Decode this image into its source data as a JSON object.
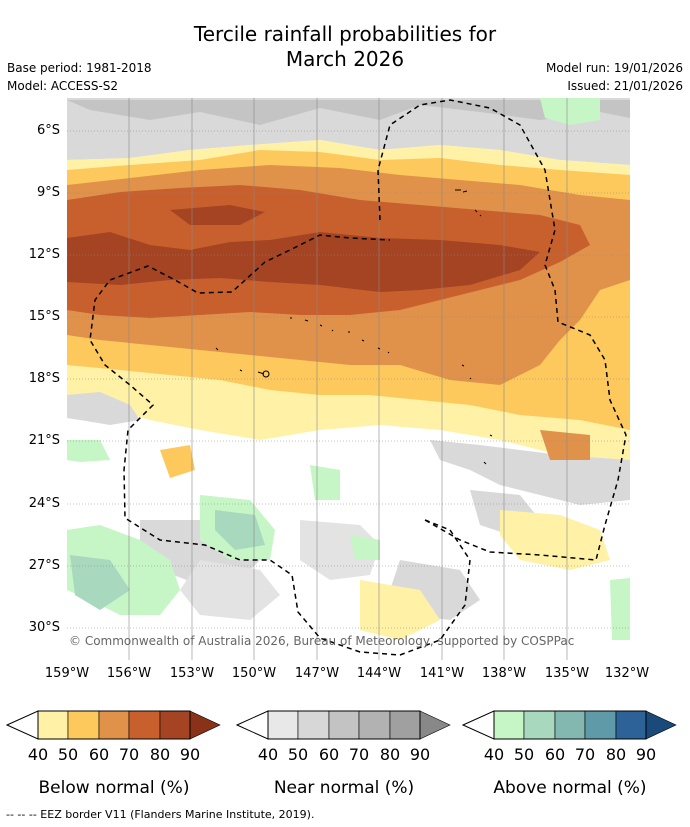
{
  "title_line1": "Tercile rainfall probabilities for",
  "title_line2": "March 2026",
  "base_period": "Base period: 1981-2018",
  "model": "Model: ACCESS-S2",
  "model_run": "Model run: 19/01/2026",
  "issued": "Issued: 21/01/2026",
  "copyright": "© Commonwealth of Australia 2026, Bureau of Meteorology, supported by COSPPac",
  "lat_labels": [
    "6°S",
    "9°S",
    "12°S",
    "15°S",
    "18°S",
    "21°S",
    "24°S",
    "27°S",
    "30°S"
  ],
  "lon_labels": [
    "159°W",
    "156°W",
    "153°W",
    "150°W",
    "147°W",
    "144°W",
    "141°W",
    "138°W",
    "135°W",
    "132°W"
  ],
  "legends": [
    {
      "caption": "Below normal (%)",
      "ticks": [
        "40",
        "50",
        "60",
        "70",
        "80",
        "90"
      ],
      "colors": [
        "#fff1a6",
        "#fdc95c",
        "#e0924a",
        "#c8602e",
        "#a54423",
        "#8a3219"
      ]
    },
    {
      "caption": "Near normal (%)",
      "ticks": [
        "40",
        "50",
        "60",
        "70",
        "80",
        "90"
      ],
      "colors": [
        "#e8e8e8",
        "#d7d7d7",
        "#c3c3c3",
        "#b2b2b2",
        "#a0a0a0",
        "#888888"
      ]
    },
    {
      "caption": "Above normal (%)",
      "ticks": [
        "40",
        "50",
        "60",
        "70",
        "80",
        "90"
      ],
      "colors": [
        "#c6f5c6",
        "#a8d8bd",
        "#82b8b0",
        "#5e9aa8",
        "#2c6298",
        "#1a4a7a"
      ]
    }
  ],
  "footer": "--  --  -- EEZ border V11 (Flanders Marine Institute, 2019)."
}
